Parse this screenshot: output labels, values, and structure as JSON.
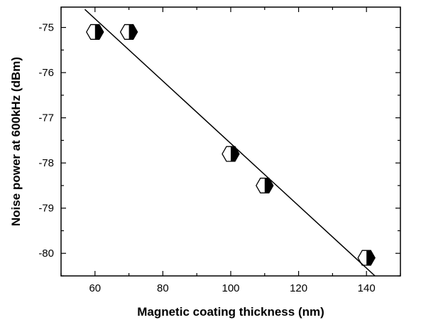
{
  "chart_data": {
    "type": "scatter",
    "title": "",
    "xlabel": "Magnetic coating thickness (nm)",
    "ylabel": "Noise power at 600kHz (dBm)",
    "xlim": [
      50,
      150
    ],
    "ylim": [
      -80.5,
      -74.55
    ],
    "xticks": [
      60,
      80,
      100,
      120,
      140
    ],
    "yticks": [
      -75,
      -76,
      -77,
      -78,
      -79,
      -80
    ],
    "xtick_labels": [
      "60",
      "80",
      "100",
      "120",
      "140"
    ],
    "ytick_labels": [
      "-75",
      "-76",
      "-77",
      "-78",
      "-79",
      "-80"
    ],
    "grid": false,
    "legend": false,
    "marker": "half-filled hexagon",
    "series": [
      {
        "points": [
          {
            "x": 60,
            "y": -75.1
          },
          {
            "x": 70,
            "y": -75.1
          },
          {
            "x": 100,
            "y": -77.8
          },
          {
            "x": 110,
            "y": -78.5
          },
          {
            "x": 140,
            "y": -80.1
          }
        ]
      }
    ],
    "fit_line": {
      "x": [
        57,
        142.5
      ],
      "y": [
        -74.6,
        -80.5
      ]
    },
    "colors": {
      "marker_fill": "#000000",
      "marker_outline": "#000000",
      "line": "#000000",
      "axes": "#000000"
    }
  }
}
